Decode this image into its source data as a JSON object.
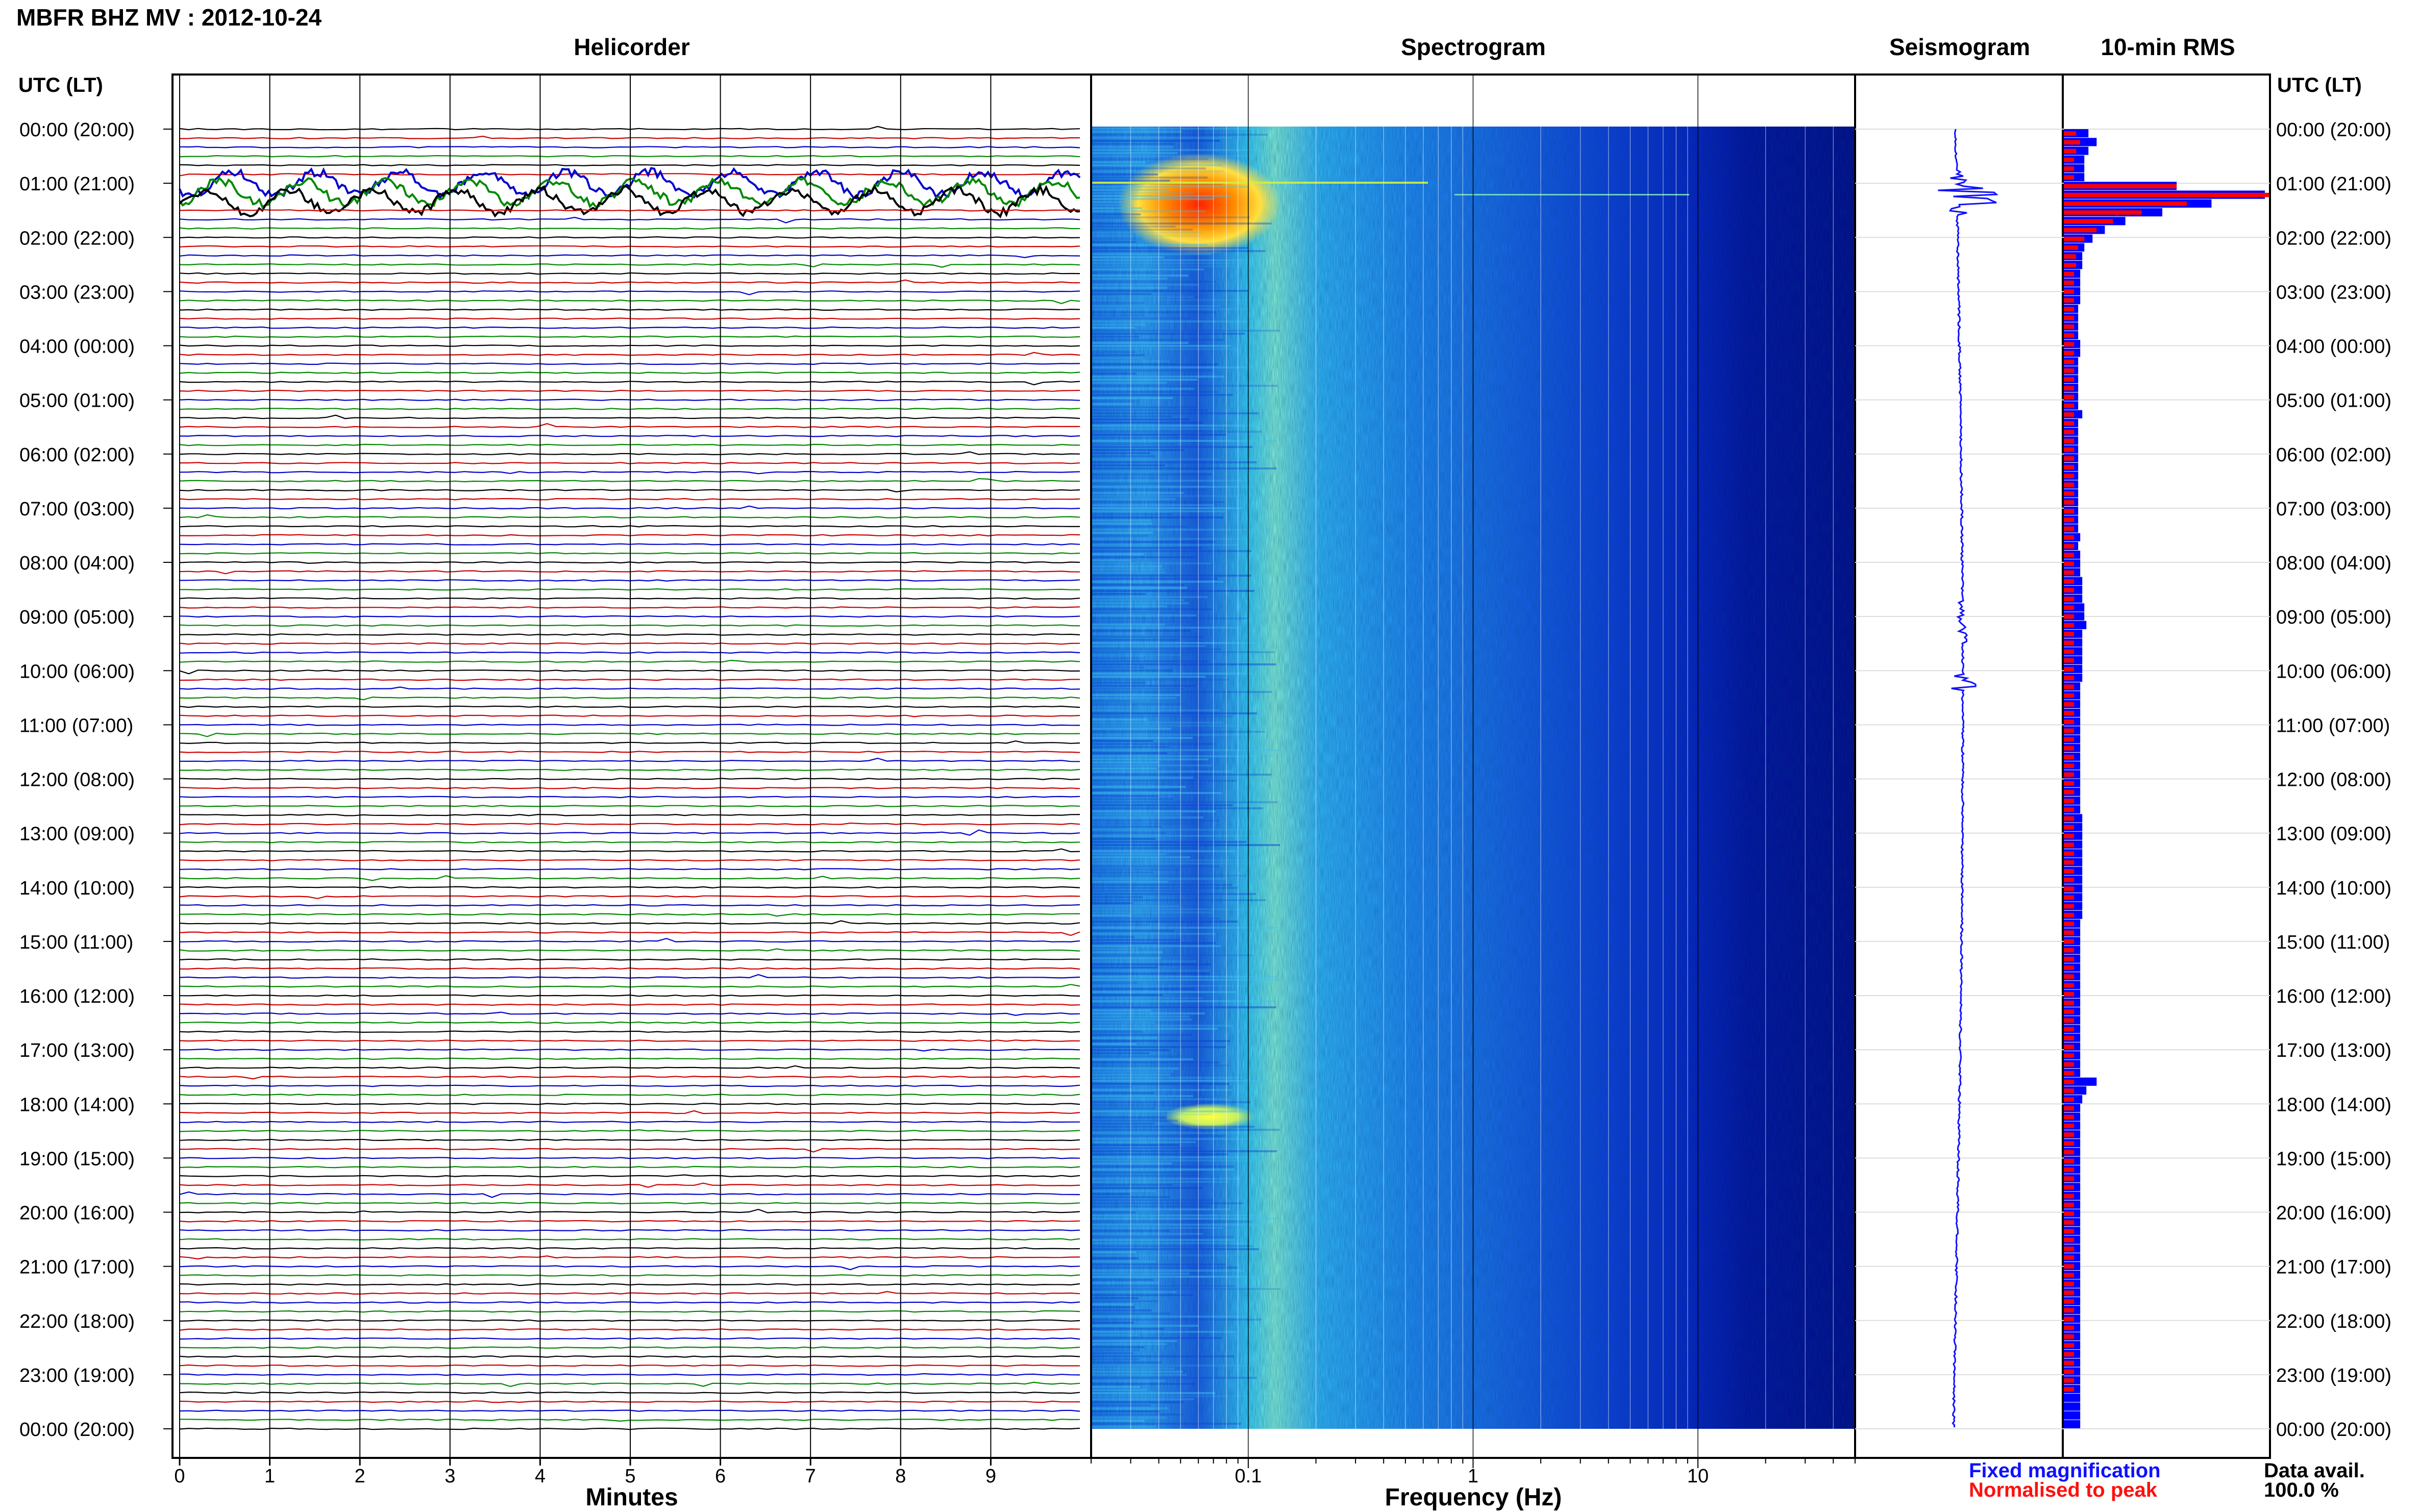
{
  "header": {
    "title": "MBFR BHZ MV : 2012-10-24"
  },
  "panels": {
    "helicorder": "Helicorder",
    "spectrogram": "Spectrogram",
    "seismogram": "Seismogram",
    "rms": "10-min RMS"
  },
  "axes": {
    "time_label": "UTC (LT)",
    "minutes_label": "Minutes",
    "frequency_label": "Frequency (Hz)"
  },
  "legend": {
    "fixed": "Fixed magnification",
    "normalised": "Normalised to peak",
    "fixed_color": "#1010ff",
    "normalised_color": "#ff1010"
  },
  "data_avail": {
    "label": "Data avail.",
    "value": "100.0 %"
  },
  "colors": {
    "trace_cycle": [
      "#000000",
      "#cc0000",
      "#0000cc",
      "#008800"
    ],
    "rms_fixed": "#0000ff",
    "rms_norm": "#ff0000"
  },
  "chart_data": {
    "type": "heatmap",
    "time_ticks": [
      "00:00 (20:00)",
      "01:00 (21:00)",
      "02:00 (22:00)",
      "03:00 (23:00)",
      "04:00 (00:00)",
      "05:00 (01:00)",
      "06:00 (02:00)",
      "07:00 (03:00)",
      "08:00 (04:00)",
      "09:00 (05:00)",
      "10:00 (06:00)",
      "11:00 (07:00)",
      "12:00 (08:00)",
      "13:00 (09:00)",
      "14:00 (10:00)",
      "15:00 (11:00)",
      "16:00 (12:00)",
      "17:00 (13:00)",
      "18:00 (14:00)",
      "19:00 (15:00)",
      "20:00 (16:00)",
      "21:00 (17:00)",
      "22:00 (18:00)",
      "23:00 (19:00)",
      "00:00 (20:00)"
    ],
    "minute_ticks": [
      "0",
      "1",
      "2",
      "3",
      "4",
      "5",
      "6",
      "7",
      "8",
      "9"
    ],
    "minutes_range": [
      0,
      10
    ],
    "frequency_ticks": [
      {
        "value": 0.1,
        "label": "0.1"
      },
      {
        "value": 1,
        "label": "1"
      },
      {
        "value": 10,
        "label": "10"
      }
    ],
    "frequency_range_hz": [
      0.02,
      50
    ],
    "frequency_scale": "log",
    "rms_fixed_rel": [
      0.12,
      0.16,
      0.12,
      0.1,
      0.1,
      0.1,
      0.55,
      0.98,
      0.72,
      0.48,
      0.3,
      0.2,
      0.14,
      0.1,
      0.09,
      0.09,
      0.08,
      0.08,
      0.08,
      0.08,
      0.07,
      0.07,
      0.07,
      0.07,
      0.08,
      0.08,
      0.07,
      0.07,
      0.07,
      0.07,
      0.07,
      0.07,
      0.09,
      0.07,
      0.07,
      0.07,
      0.07,
      0.07,
      0.07,
      0.07,
      0.07,
      0.07,
      0.07,
      0.07,
      0.07,
      0.07,
      0.08,
      0.07,
      0.08,
      0.08,
      0.08,
      0.09,
      0.09,
      0.09,
      0.1,
      0.1,
      0.11,
      0.09,
      0.09,
      0.09,
      0.09,
      0.09,
      0.09,
      0.08,
      0.08,
      0.08,
      0.08,
      0.08,
      0.08,
      0.08,
      0.08,
      0.08,
      0.08,
      0.08,
      0.08,
      0.08,
      0.08,
      0.08,
      0.09,
      0.09,
      0.09,
      0.09,
      0.09,
      0.09,
      0.09,
      0.09,
      0.09,
      0.09,
      0.09,
      0.09,
      0.08,
      0.08,
      0.08,
      0.08,
      0.08,
      0.08,
      0.08,
      0.08,
      0.08,
      0.08,
      0.08,
      0.08,
      0.08,
      0.08,
      0.08,
      0.08,
      0.08,
      0.08,
      0.16,
      0.11,
      0.09,
      0.08,
      0.08,
      0.08,
      0.08,
      0.08,
      0.08,
      0.08,
      0.08,
      0.08,
      0.08,
      0.08,
      0.08,
      0.08,
      0.08,
      0.08,
      0.08,
      0.08,
      0.08,
      0.08,
      0.08,
      0.08,
      0.08,
      0.08,
      0.08,
      0.08,
      0.08,
      0.08,
      0.08,
      0.08,
      0.08,
      0.08,
      0.08,
      0.08,
      0.08,
      0.08,
      0.08,
      0.08
    ],
    "rms_norm_rel": [
      0.06,
      0.08,
      0.06,
      0.05,
      0.05,
      0.05,
      0.55,
      1.0,
      0.6,
      0.38,
      0.24,
      0.16,
      0.1,
      0.07,
      0.06,
      0.06,
      0.05,
      0.05,
      0.05,
      0.05,
      0.05,
      0.05,
      0.05,
      0.05,
      0.05,
      0.05,
      0.05,
      0.05,
      0.05,
      0.05,
      0.05,
      0.05,
      0.05,
      0.05,
      0.05,
      0.05,
      0.05,
      0.05,
      0.05,
      0.05,
      0.05,
      0.05,
      0.05,
      0.05,
      0.05,
      0.05,
      0.05,
      0.05,
      0.05,
      0.05,
      0.05,
      0.05,
      0.05,
      0.05,
      0.05,
      0.05,
      0.05,
      0.05,
      0.05,
      0.05,
      0.05,
      0.05,
      0.05,
      0.05,
      0.05,
      0.05,
      0.05,
      0.05,
      0.05,
      0.05,
      0.05,
      0.05,
      0.05,
      0.05,
      0.05,
      0.05,
      0.05,
      0.05,
      0.05,
      0.05,
      0.05,
      0.05,
      0.05,
      0.05,
      0.05,
      0.05,
      0.05,
      0.05,
      0.05,
      0.05,
      0.05,
      0.05,
      0.05,
      0.05,
      0.05,
      0.05,
      0.05,
      0.05,
      0.05,
      0.05,
      0.05,
      0.05,
      0.05,
      0.05,
      0.05,
      0.05,
      0.05,
      0.05,
      0.05,
      0.05,
      0.05,
      0.05,
      0.05,
      0.05,
      0.05,
      0.05,
      0.05,
      0.05,
      0.05,
      0.05,
      0.05,
      0.05,
      0.05,
      0.05,
      0.05,
      0.05,
      0.05,
      0.05,
      0.05,
      0.05,
      0.05,
      0.05,
      0.05,
      0.05,
      0.05,
      0.05,
      0.05,
      0.05,
      0.05,
      0.05,
      0.05,
      0.05,
      0.05,
      0.05
    ]
  }
}
